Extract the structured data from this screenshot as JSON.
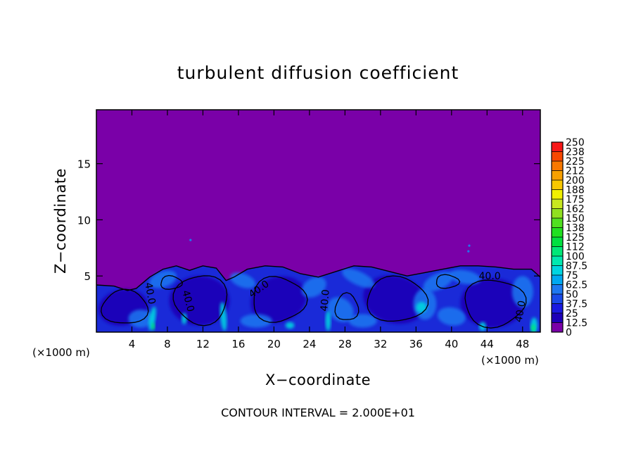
{
  "chart_data": {
    "type": "heatmap",
    "title": "turbulent diffusion coefficient",
    "xlabel": "X−coordinate",
    "ylabel": "Z−coordinate",
    "x_unit_left": "(×1000 m)",
    "x_unit_right": "(×1000 m)",
    "xlim": [
      0,
      50
    ],
    "ylim": [
      0,
      19.8
    ],
    "x_ticks": [
      4,
      8,
      12,
      16,
      20,
      24,
      28,
      32,
      36,
      40,
      44,
      48
    ],
    "y_ticks": [
      5,
      10,
      15
    ],
    "colorbar": {
      "levels": [
        "0",
        "12.5",
        "25",
        "37.5",
        "50",
        "62.5",
        "75",
        "87.5",
        "100",
        "112",
        "125",
        "138",
        "150",
        "162",
        "175",
        "188",
        "200",
        "212",
        "225",
        "238",
        "250"
      ],
      "colors": [
        "#7a00a8",
        "#1d00b8",
        "#1a1ae0",
        "#1a4ae8",
        "#1e78f0",
        "#00a8f0",
        "#00d4e0",
        "#00e8b0",
        "#00e878",
        "#00e040",
        "#20e020",
        "#50e020",
        "#90e020",
        "#c8e820",
        "#f0f000",
        "#f8c800",
        "#f8a000",
        "#f87800",
        "#f84800",
        "#f81818",
        "#f87878"
      ]
    },
    "background_color": "#7a00a8",
    "turbulent_layer_top": 5.8,
    "contour_labels": [
      {
        "text": "40.0",
        "x": 10.0,
        "y": 2.7,
        "angle": 75
      },
      {
        "text": "40.0",
        "x": 18.5,
        "y": 3.6,
        "angle": -35
      },
      {
        "text": "40.0",
        "x": 26.1,
        "y": 2.8,
        "angle": -85
      },
      {
        "text": "40.0",
        "x": 5.7,
        "y": 3.4,
        "angle": 80
      },
      {
        "text": "40.0",
        "x": 44.3,
        "y": 4.7,
        "angle": 0
      },
      {
        "text": "40.0",
        "x": 48.1,
        "y": 1.8,
        "angle": -80
      }
    ],
    "contour_interval_text": "CONTOUR INTERVAL = 2.000E+01"
  }
}
